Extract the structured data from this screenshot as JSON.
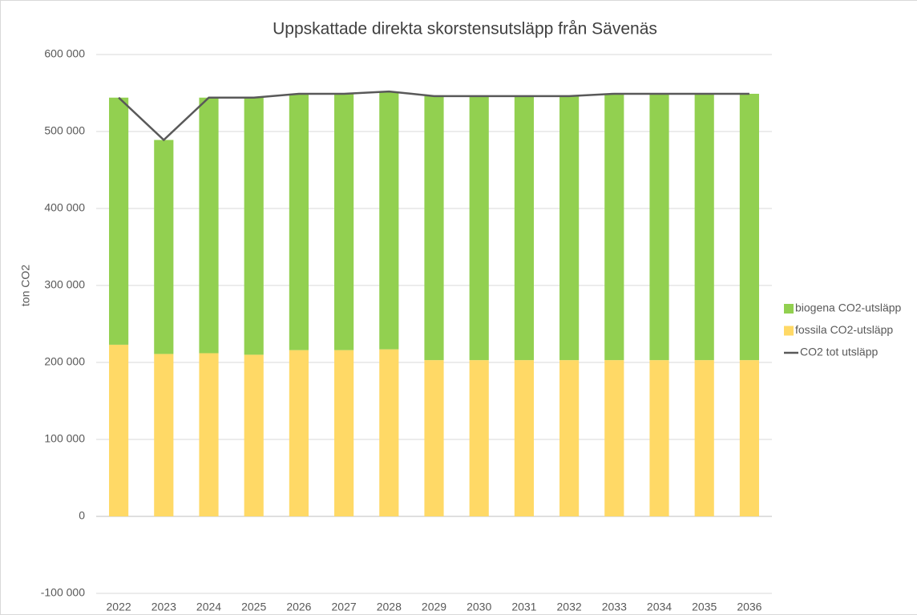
{
  "chart_data": {
    "type": "bar",
    "stacked": true,
    "title": "Uppskattade direkta skorstensutsläpp från Sävenäs",
    "y_label": "ton CO2",
    "categories": [
      "2022",
      "2023",
      "2024",
      "2025",
      "2026",
      "2027",
      "2028",
      "2029",
      "2030",
      "2031",
      "2032",
      "2033",
      "2034",
      "2035",
      "2036"
    ],
    "series": [
      {
        "name": "biogena CO2-utsläpp",
        "type": "bar",
        "color": "#92d050",
        "values": [
          321000,
          278000,
          332000,
          334000,
          333000,
          333000,
          335000,
          343000,
          343000,
          343000,
          343000,
          346000,
          346000,
          346000,
          346000
        ]
      },
      {
        "name": "fossila CO2-utsläpp",
        "type": "bar",
        "color": "#ffd966",
        "values": [
          223000,
          211000,
          212000,
          210000,
          216000,
          216000,
          217000,
          203000,
          203000,
          203000,
          203000,
          203000,
          203000,
          203000,
          203000
        ]
      },
      {
        "name": "CO2 tot utsläpp",
        "type": "line",
        "color": "#595959",
        "values": [
          544000,
          489000,
          544000,
          544000,
          549000,
          549000,
          552000,
          546000,
          546000,
          546000,
          546000,
          549000,
          549000,
          549000,
          549000
        ]
      }
    ],
    "ylim": [
      -100000,
      600000
    ],
    "yticks": [
      {
        "value": -100000,
        "label": "-100 000"
      },
      0,
      {
        "value": 100000,
        "label": "100 000"
      },
      {
        "value": 200000,
        "label": "200 000"
      },
      {
        "value": 300000,
        "label": "300 000"
      },
      {
        "value": 400000,
        "label": "400 000"
      },
      {
        "value": 500000,
        "label": "500 000"
      },
      {
        "value": 600000,
        "label": "600 000"
      }
    ],
    "grid": true,
    "legend": "right"
  }
}
